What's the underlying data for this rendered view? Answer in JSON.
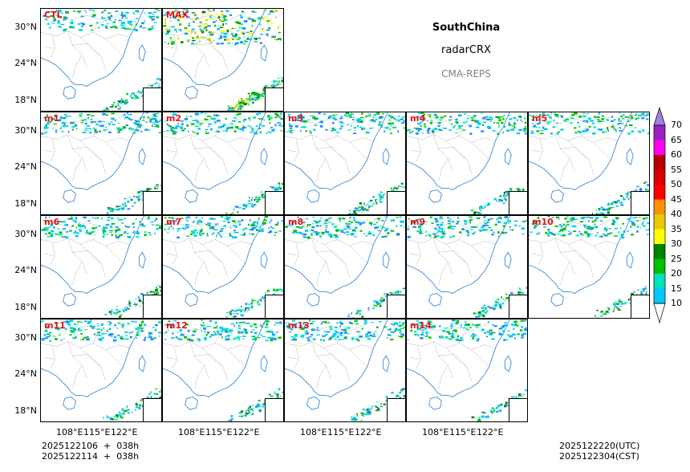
{
  "title": {
    "region": "SouthChina",
    "variable": "radarCRX",
    "system": "CMA-REPS"
  },
  "colors": {
    "title": "#0000cc",
    "label": "#e8101a",
    "system": "#808080"
  },
  "panels": [
    {
      "label": "CTL"
    },
    {
      "label": "MAX"
    },
    {
      "label": "m1"
    },
    {
      "label": "m2"
    },
    {
      "label": "m3"
    },
    {
      "label": "m4"
    },
    {
      "label": "m5"
    },
    {
      "label": "m6"
    },
    {
      "label": "m7"
    },
    {
      "label": "m8"
    },
    {
      "label": "m9"
    },
    {
      "label": "m10"
    },
    {
      "label": "m11"
    },
    {
      "label": "m12"
    },
    {
      "label": "m13"
    },
    {
      "label": "m14"
    }
  ],
  "lat_ticks": [
    "30°N",
    "24°N",
    "18°N"
  ],
  "lon_ticks": [
    "108°E",
    "115°E",
    "122°E"
  ],
  "colorbar": {
    "levels": [
      "10",
      "15",
      "20",
      "25",
      "30",
      "35",
      "40",
      "45",
      "50",
      "55",
      "60",
      "65",
      "70"
    ],
    "colors": [
      "#1e90ff",
      "#00c8ff",
      "#00e0c0",
      "#00c000",
      "#008000",
      "#ffff00",
      "#e8c800",
      "#ff9000",
      "#ff0000",
      "#d80000",
      "#b40000",
      "#ff00f0",
      "#9a20c0",
      "#a080e0"
    ]
  },
  "footer": {
    "init_line1": "2025122106  +  038h",
    "init_line2": "2025122114  +  038h",
    "valid_utc": "2025122220(UTC)",
    "valid_cst": "2025122304(CST)"
  }
}
